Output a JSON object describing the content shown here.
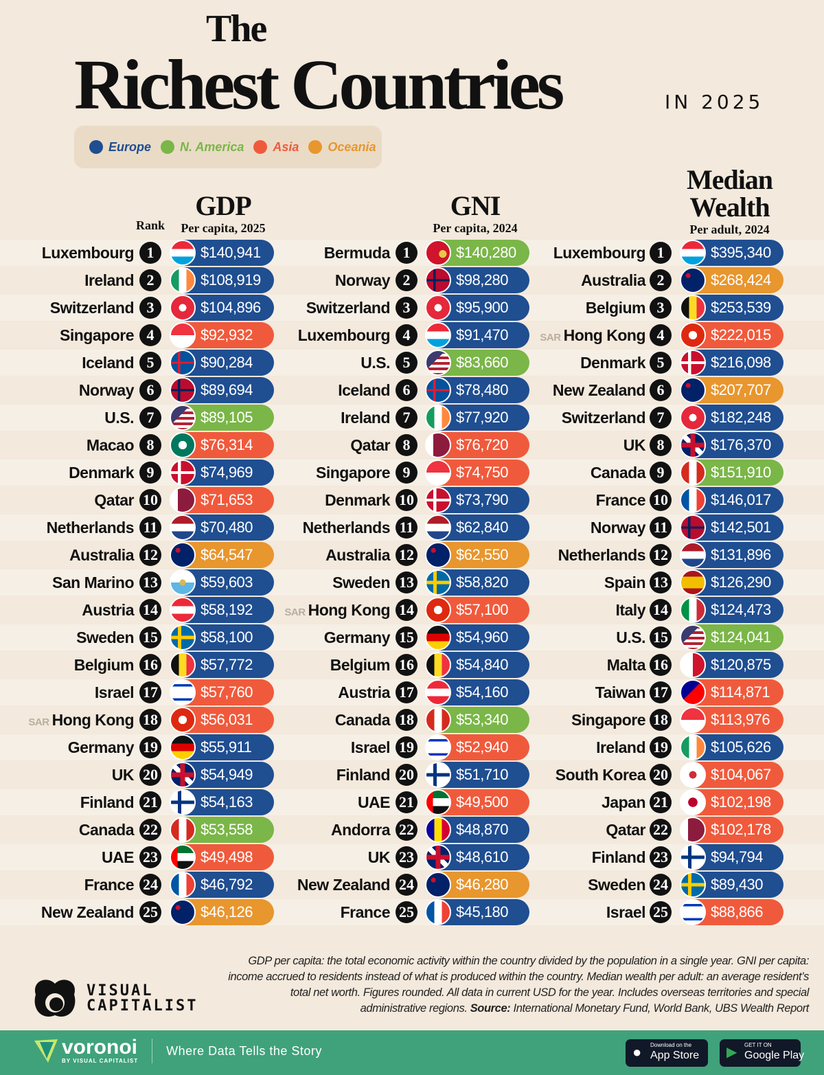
{
  "title": {
    "the": "The",
    "main": "Richest Countries",
    "year": "IN 2025"
  },
  "regions": {
    "Europe": "#1f4e91",
    "N. America": "#7ab648",
    "Asia": "#f05a3c",
    "Oceania": "#e8962e"
  },
  "legend": [
    "Europe",
    "N. America",
    "Asia",
    "Oceania"
  ],
  "headers": {
    "rank": "Rank",
    "gdp": {
      "title": "GDP",
      "sub": "Per capita, 2025"
    },
    "gni": {
      "title": "GNI",
      "sub": "Per capita, 2024"
    },
    "wealth": {
      "title1": "Median",
      "title2": "Wealth",
      "sub": "Per adult, 2024"
    }
  },
  "chart_data": [
    {
      "type": "table",
      "title": "GDP",
      "subtitle": "Per capita, 2025",
      "rows": [
        [
          "Luxembourg",
          1,
          "$140,941",
          "Europe"
        ],
        [
          "Ireland",
          2,
          "$108,919",
          "Europe"
        ],
        [
          "Switzerland",
          3,
          "$104,896",
          "Europe"
        ],
        [
          "Singapore",
          4,
          "$92,932",
          "Asia"
        ],
        [
          "Iceland",
          5,
          "$90,284",
          "Europe"
        ],
        [
          "Norway",
          6,
          "$89,694",
          "Europe"
        ],
        [
          "U.S.",
          7,
          "$89,105",
          "N. America"
        ],
        [
          "Macao",
          8,
          "$76,314",
          "Asia"
        ],
        [
          "Denmark",
          9,
          "$74,969",
          "Europe"
        ],
        [
          "Qatar",
          10,
          "$71,653",
          "Asia"
        ],
        [
          "Netherlands",
          11,
          "$70,480",
          "Europe"
        ],
        [
          "Australia",
          12,
          "$64,547",
          "Oceania"
        ],
        [
          "San Marino",
          13,
          "$59,603",
          "Europe"
        ],
        [
          "Austria",
          14,
          "$58,192",
          "Europe"
        ],
        [
          "Sweden",
          15,
          "$58,100",
          "Europe"
        ],
        [
          "Belgium",
          16,
          "$57,772",
          "Europe"
        ],
        [
          "Israel",
          17,
          "$57,760",
          "Asia"
        ],
        [
          "Hong Kong",
          18,
          "$56,031",
          "Asia",
          "SAR"
        ],
        [
          "Germany",
          19,
          "$55,911",
          "Europe"
        ],
        [
          "UK",
          20,
          "$54,949",
          "Europe"
        ],
        [
          "Finland",
          21,
          "$54,163",
          "Europe"
        ],
        [
          "Canada",
          22,
          "$53,558",
          "N. America"
        ],
        [
          "UAE",
          23,
          "$49,498",
          "Asia"
        ],
        [
          "France",
          24,
          "$46,792",
          "Europe"
        ],
        [
          "New Zealand",
          25,
          "$46,126",
          "Oceania"
        ]
      ]
    },
    {
      "type": "table",
      "title": "GNI",
      "subtitle": "Per capita, 2024",
      "rows": [
        [
          "Bermuda",
          1,
          "$140,280",
          "N. America"
        ],
        [
          "Norway",
          2,
          "$98,280",
          "Europe"
        ],
        [
          "Switzerland",
          3,
          "$95,900",
          "Europe"
        ],
        [
          "Luxembourg",
          4,
          "$91,470",
          "Europe"
        ],
        [
          "U.S.",
          5,
          "$83,660",
          "N. America"
        ],
        [
          "Iceland",
          6,
          "$78,480",
          "Europe"
        ],
        [
          "Ireland",
          7,
          "$77,920",
          "Europe"
        ],
        [
          "Qatar",
          8,
          "$76,720",
          "Asia"
        ],
        [
          "Singapore",
          9,
          "$74,750",
          "Asia"
        ],
        [
          "Denmark",
          10,
          "$73,790",
          "Europe"
        ],
        [
          "Netherlands",
          11,
          "$62,840",
          "Europe"
        ],
        [
          "Australia",
          12,
          "$62,550",
          "Oceania"
        ],
        [
          "Sweden",
          13,
          "$58,820",
          "Europe"
        ],
        [
          "Hong Kong",
          14,
          "$57,100",
          "Asia",
          "SAR"
        ],
        [
          "Germany",
          15,
          "$54,960",
          "Europe"
        ],
        [
          "Belgium",
          16,
          "$54,840",
          "Europe"
        ],
        [
          "Austria",
          17,
          "$54,160",
          "Europe"
        ],
        [
          "Canada",
          18,
          "$53,340",
          "N. America"
        ],
        [
          "Israel",
          19,
          "$52,940",
          "Asia"
        ],
        [
          "Finland",
          20,
          "$51,710",
          "Europe"
        ],
        [
          "UAE",
          21,
          "$49,500",
          "Asia"
        ],
        [
          "Andorra",
          22,
          "$48,870",
          "Europe"
        ],
        [
          "UK",
          23,
          "$48,610",
          "Europe"
        ],
        [
          "New Zealand",
          24,
          "$46,280",
          "Oceania"
        ],
        [
          "France",
          25,
          "$45,180",
          "Europe"
        ]
      ]
    },
    {
      "type": "table",
      "title": "Median Wealth",
      "subtitle": "Per adult, 2024",
      "rows": [
        [
          "Luxembourg",
          1,
          "$395,340",
          "Europe"
        ],
        [
          "Australia",
          2,
          "$268,424",
          "Oceania"
        ],
        [
          "Belgium",
          3,
          "$253,539",
          "Europe"
        ],
        [
          "Hong Kong",
          4,
          "$222,015",
          "Asia",
          "SAR"
        ],
        [
          "Denmark",
          5,
          "$216,098",
          "Europe"
        ],
        [
          "New Zealand",
          6,
          "$207,707",
          "Oceania"
        ],
        [
          "Switzerland",
          7,
          "$182,248",
          "Europe"
        ],
        [
          "UK",
          8,
          "$176,370",
          "Europe"
        ],
        [
          "Canada",
          9,
          "$151,910",
          "N. America"
        ],
        [
          "France",
          10,
          "$146,017",
          "Europe"
        ],
        [
          "Norway",
          11,
          "$142,501",
          "Europe"
        ],
        [
          "Netherlands",
          12,
          "$131,896",
          "Europe"
        ],
        [
          "Spain",
          13,
          "$126,290",
          "Europe"
        ],
        [
          "Italy",
          14,
          "$124,473",
          "Europe"
        ],
        [
          "U.S.",
          15,
          "$124,041",
          "N. America"
        ],
        [
          "Malta",
          16,
          "$120,875",
          "Europe"
        ],
        [
          "Taiwan",
          17,
          "$114,871",
          "Asia"
        ],
        [
          "Singapore",
          18,
          "$113,976",
          "Asia"
        ],
        [
          "Ireland",
          19,
          "$105,626",
          "Europe"
        ],
        [
          "South Korea",
          20,
          "$104,067",
          "Asia"
        ],
        [
          "Japan",
          21,
          "$102,198",
          "Asia"
        ],
        [
          "Qatar",
          22,
          "$102,178",
          "Asia"
        ],
        [
          "Finland",
          23,
          "$94,794",
          "Europe"
        ],
        [
          "Sweden",
          24,
          "$89,430",
          "Europe"
        ],
        [
          "Israel",
          25,
          "$88,866",
          "Asia"
        ]
      ]
    }
  ],
  "footnote": {
    "text": "GDP per capita: the total economic activity within the country divided by the population in a single year. GNI per capita: income accrued to residents instead of what is produced within the country. Median wealth per adult: an average resident’s total net worth. Figures rounded. All data in current USD for the year. Includes overseas territories and special administrative regions. ",
    "source_label": "Source:",
    "source": " International Monetary Fund, World Bank, UBS Wealth Report"
  },
  "brand": {
    "logo": "VISUAL CAPITALIST",
    "voronoi": "voronoi",
    "voronoi_sub": "BY VISUAL CAPITALIST",
    "tagline": "Where Data Tells the Story"
  },
  "stores": {
    "apple_small": "Download on the",
    "apple": "App Store",
    "google_small": "GET IT ON",
    "google": "Google Play"
  }
}
